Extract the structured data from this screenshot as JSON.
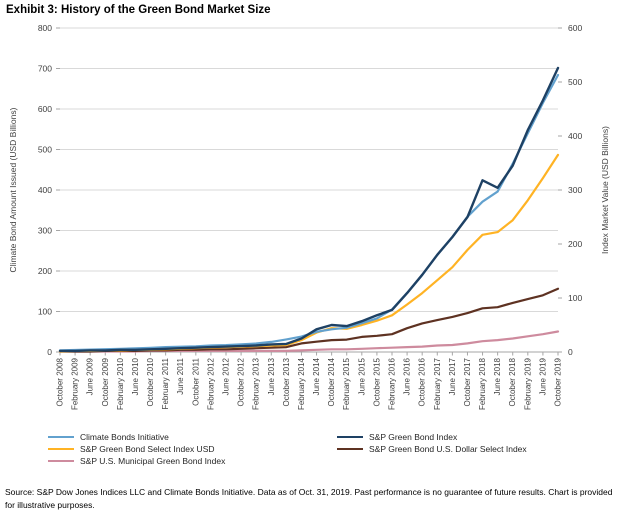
{
  "title": "Exhibit 3: History of the Green Bond Market Size",
  "source_text": "Source: S&P Dow Jones Indices LLC and Climate Bonds Initiative. Data as of Oct. 31, 2019. Past performance is no guarantee of future results. Chart is provided for illustrative purposes.",
  "colors": {
    "grid": "#D9D9D9",
    "axis_line": "#A6A6A6",
    "tick_text": "#404040"
  },
  "chart_data": {
    "type": "line",
    "title": "Exhibit 3: History of the Green Bond Market Size",
    "ylabel": "Climate Bond Amount Issued (USD Billions)",
    "y2label": "Index Market Value (USD Billions)",
    "ylim": [
      0,
      800
    ],
    "y2lim": [
      0,
      600
    ],
    "grid": true,
    "legend_position": "bottom",
    "left_ticks": [
      800,
      700,
      600,
      500,
      400,
      300,
      200,
      100,
      0
    ],
    "right_ticks": [
      600,
      500,
      400,
      300,
      200,
      100,
      0
    ],
    "categories": [
      "October 2008",
      "February 2009",
      "June 2009",
      "October 2009",
      "February 2010",
      "June 2010",
      "October 2010",
      "February 2011",
      "June 2011",
      "October 2011",
      "February 2012",
      "June 2012",
      "October 2012",
      "February 2013",
      "June 2013",
      "October 2013",
      "February 2014",
      "June 2014",
      "October 2014",
      "February 2015",
      "June 2015",
      "October 2015",
      "February 2016",
      "June 2016",
      "October 2016",
      "February 2017",
      "June 2017",
      "October 2017",
      "February 2018",
      "June 2018",
      "October 2018",
      "February 2019",
      "June 2019",
      "October 2019"
    ],
    "series": [
      {
        "name": "Climate Bonds Initiative",
        "axis": "left",
        "color": "#62A1CE",
        "values": [
          4,
          5,
          6,
          7,
          8,
          9,
          10,
          12,
          13,
          14,
          16,
          17,
          19,
          21,
          25,
          31,
          38,
          50,
          56,
          60,
          71,
          83,
          105,
          146,
          190,
          240,
          284,
          334,
          371,
          396,
          465,
          540,
          615,
          684
        ]
      },
      {
        "name": "S&P Green Bond Select Index USD",
        "axis": "right",
        "color": "#FFB324",
        "values": [
          1,
          2,
          2,
          3,
          3,
          4,
          4,
          5,
          6,
          7,
          8,
          9,
          10,
          11,
          12,
          13,
          22,
          36,
          44,
          43,
          50,
          58,
          68,
          88,
          109,
          133,
          157,
          189,
          217,
          222,
          244,
          281,
          322,
          365
        ]
      },
      {
        "name": "S&P U.S. Municipal Green Bond Index",
        "axis": "right",
        "color": "#CE8B9E",
        "values": [
          1,
          1,
          1,
          1,
          1,
          1,
          2,
          2,
          2,
          2,
          2,
          2,
          2,
          2,
          2,
          2,
          3,
          4,
          5,
          5,
          6,
          7,
          8,
          9,
          10,
          12,
          13,
          16,
          20,
          22,
          25,
          29,
          33,
          38
        ]
      },
      {
        "name": "S&P Green Bond Index",
        "axis": "right",
        "color": "#1E4164",
        "values": [
          2,
          2,
          3,
          3,
          4,
          4,
          5,
          6,
          7,
          8,
          9,
          10,
          11,
          12,
          14,
          15,
          25,
          42,
          50,
          48,
          57,
          68,
          78,
          109,
          143,
          180,
          213,
          250,
          318,
          304,
          345,
          411,
          466,
          526
        ]
      },
      {
        "name": "S&P Green Bond U.S. Dollar Select Index",
        "axis": "right",
        "color": "#5E3222",
        "values": [
          1,
          1,
          1,
          2,
          2,
          2,
          3,
          3,
          4,
          4,
          5,
          5,
          6,
          7,
          8,
          9,
          16,
          19,
          22,
          23,
          28,
          30,
          33,
          44,
          53,
          59,
          65,
          72,
          81,
          83,
          91,
          98,
          105,
          117
        ]
      }
    ]
  },
  "legend": {
    "left": [
      {
        "label": "Climate Bonds Initiative",
        "series_index": 0
      },
      {
        "label": "S&P Green Bond Select Index USD",
        "series_index": 1
      },
      {
        "label": "S&P U.S. Municipal Green Bond Index",
        "series_index": 2
      }
    ],
    "right": [
      {
        "label": "S&P Green Bond Index",
        "series_index": 3
      },
      {
        "label": "S&P Green Bond U.S. Dollar Select Index",
        "series_index": 4
      }
    ]
  }
}
